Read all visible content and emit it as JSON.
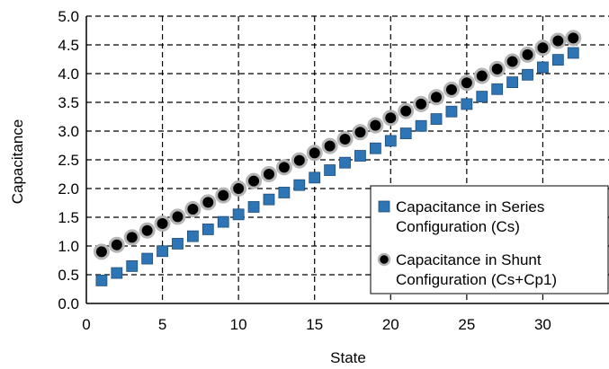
{
  "chart_data": {
    "type": "scatter",
    "xlabel": "State",
    "ylabel": "Capacitance",
    "xlim": [
      0,
      35
    ],
    "ylim": [
      0,
      5
    ],
    "xticks": [
      0,
      5,
      10,
      15,
      20,
      25,
      30
    ],
    "yticks": [
      0.0,
      0.5,
      1.0,
      1.5,
      2.0,
      2.5,
      3.0,
      3.5,
      4.0,
      4.5,
      5.0
    ],
    "grid": "dashed",
    "legend_position": "bottom-right",
    "x": [
      1,
      2,
      3,
      4,
      5,
      6,
      7,
      8,
      9,
      10,
      11,
      12,
      13,
      14,
      15,
      16,
      17,
      18,
      19,
      20,
      21,
      22,
      23,
      24,
      25,
      26,
      27,
      28,
      29,
      30,
      31,
      32
    ],
    "series": [
      {
        "name": "Capacitance in Series Configuration (Cs)",
        "legend_lines": [
          "Capacitance in Series",
          "Configuration (Cs)"
        ],
        "marker": "square",
        "color": "#2e75b6",
        "values": [
          0.4,
          0.53,
          0.65,
          0.78,
          0.91,
          1.04,
          1.17,
          1.29,
          1.42,
          1.55,
          1.68,
          1.81,
          1.93,
          2.06,
          2.19,
          2.32,
          2.45,
          2.57,
          2.7,
          2.83,
          2.96,
          3.09,
          3.21,
          3.34,
          3.47,
          3.6,
          3.73,
          3.85,
          3.98,
          4.11,
          4.24,
          4.36
        ]
      },
      {
        "name": "Capacitance in Shunt Configuration (Cs+Cp1)",
        "legend_lines": [
          "Capacitance in Shunt",
          "Configuration (Cs+Cp1)"
        ],
        "marker": "circle",
        "color": "#000000",
        "values": [
          0.9,
          1.02,
          1.15,
          1.27,
          1.39,
          1.51,
          1.64,
          1.76,
          1.88,
          2.0,
          2.13,
          2.25,
          2.37,
          2.49,
          2.62,
          2.74,
          2.86,
          2.98,
          3.1,
          3.23,
          3.35,
          3.47,
          3.59,
          3.72,
          3.84,
          3.96,
          4.08,
          4.21,
          4.33,
          4.45,
          4.57,
          4.62
        ]
      }
    ]
  }
}
